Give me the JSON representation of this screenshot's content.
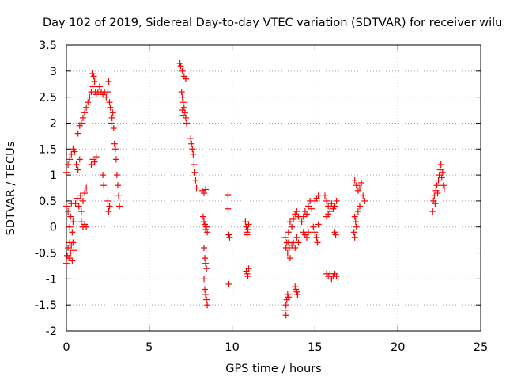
{
  "chart_data": {
    "type": "scatter",
    "title": "Day 102 of 2019, Sidereal Day-to-day VTEC variation (SDTVAR) for receiver wilu",
    "xlabel": "GPS time / hours",
    "ylabel": "SDTVAR / TECUs",
    "xlim": [
      0,
      25
    ],
    "ylim": [
      -2,
      3.5
    ],
    "xticks": [
      "0",
      "5",
      "10",
      "15",
      "20",
      "25"
    ],
    "yticks": [
      "-2",
      "-1.5",
      "-1",
      "-0.5",
      "0",
      "0.5",
      "1",
      "1.5",
      "2",
      "2.5",
      "3",
      "3.5"
    ],
    "grid": true,
    "marker": "plus",
    "color": "#ff0000",
    "series": [
      {
        "name": "SDTVAR",
        "points": [
          [
            0.0,
            -0.7
          ],
          [
            0.05,
            -0.55
          ],
          [
            0.1,
            -0.4
          ],
          [
            0.15,
            -0.6
          ],
          [
            0.2,
            -0.3
          ],
          [
            0.25,
            -0.5
          ],
          [
            0.3,
            -0.35
          ],
          [
            0.35,
            -0.65
          ],
          [
            0.4,
            -0.3
          ],
          [
            0.45,
            -0.45
          ],
          [
            0.0,
            0.4
          ],
          [
            0.1,
            0.3
          ],
          [
            0.2,
            0.0
          ],
          [
            0.25,
            0.2
          ],
          [
            0.3,
            0.45
          ],
          [
            0.35,
            -0.1
          ],
          [
            0.4,
            0.1
          ],
          [
            0.0,
            1.05
          ],
          [
            0.1,
            1.2
          ],
          [
            0.2,
            1.3
          ],
          [
            0.3,
            1.4
          ],
          [
            0.4,
            1.5
          ],
          [
            0.5,
            1.45
          ],
          [
            0.6,
            1.2
          ],
          [
            0.7,
            1.1
          ],
          [
            0.8,
            1.3
          ],
          [
            0.55,
            0.45
          ],
          [
            0.65,
            0.55
          ],
          [
            0.75,
            0.4
          ],
          [
            0.85,
            0.6
          ],
          [
            0.9,
            0.3
          ],
          [
            1.0,
            0.5
          ],
          [
            1.1,
            0.65
          ],
          [
            1.2,
            0.75
          ],
          [
            0.9,
            0.1
          ],
          [
            1.0,
            0.0
          ],
          [
            1.1,
            0.05
          ],
          [
            1.2,
            0.0
          ],
          [
            0.7,
            1.8
          ],
          [
            0.8,
            1.95
          ],
          [
            0.9,
            2.0
          ],
          [
            1.0,
            2.1
          ],
          [
            1.1,
            2.2
          ],
          [
            1.2,
            2.3
          ],
          [
            1.3,
            2.4
          ],
          [
            1.4,
            2.5
          ],
          [
            1.5,
            2.6
          ],
          [
            1.6,
            2.7
          ],
          [
            1.7,
            2.8
          ],
          [
            1.75,
            2.6
          ],
          [
            1.8,
            2.55
          ],
          [
            1.9,
            2.6
          ],
          [
            2.0,
            2.7
          ],
          [
            2.1,
            2.6
          ],
          [
            2.2,
            2.55
          ],
          [
            1.55,
            2.95
          ],
          [
            1.65,
            2.9
          ],
          [
            2.3,
            2.6
          ],
          [
            2.4,
            2.5
          ],
          [
            2.5,
            2.6
          ],
          [
            2.55,
            2.8
          ],
          [
            2.6,
            2.4
          ],
          [
            2.65,
            2.3
          ],
          [
            2.7,
            2.0
          ],
          [
            2.75,
            2.1
          ],
          [
            2.8,
            2.2
          ],
          [
            2.85,
            1.9
          ],
          [
            2.9,
            1.6
          ],
          [
            2.95,
            1.5
          ],
          [
            3.0,
            1.3
          ],
          [
            3.05,
            1.0
          ],
          [
            3.1,
            0.8
          ],
          [
            3.15,
            0.6
          ],
          [
            3.2,
            0.4
          ],
          [
            1.5,
            1.2
          ],
          [
            1.6,
            1.3
          ],
          [
            1.7,
            1.25
          ],
          [
            1.8,
            1.35
          ],
          [
            2.2,
            1.0
          ],
          [
            2.25,
            0.8
          ],
          [
            2.5,
            0.5
          ],
          [
            2.55,
            0.3
          ],
          [
            2.6,
            0.4
          ],
          [
            6.85,
            3.15
          ],
          [
            6.9,
            3.1
          ],
          [
            7.0,
            3.0
          ],
          [
            7.1,
            2.9
          ],
          [
            7.2,
            2.85
          ],
          [
            6.95,
            2.6
          ],
          [
            7.0,
            2.5
          ],
          [
            7.05,
            2.4
          ],
          [
            7.1,
            2.3
          ],
          [
            7.15,
            2.2
          ],
          [
            7.2,
            2.1
          ],
          [
            7.25,
            2.0
          ],
          [
            7.0,
            2.25
          ],
          [
            7.05,
            2.15
          ],
          [
            7.5,
            1.7
          ],
          [
            7.55,
            1.6
          ],
          [
            7.6,
            1.5
          ],
          [
            7.65,
            1.4
          ],
          [
            7.7,
            1.2
          ],
          [
            7.75,
            1.05
          ],
          [
            7.8,
            0.9
          ],
          [
            7.85,
            0.75
          ],
          [
            8.2,
            0.7
          ],
          [
            8.3,
            0.65
          ],
          [
            8.4,
            0.72
          ],
          [
            8.25,
            0.2
          ],
          [
            8.3,
            0.1
          ],
          [
            8.35,
            0.05
          ],
          [
            8.4,
            -0.05
          ],
          [
            8.45,
            0.0
          ],
          [
            8.5,
            -0.1
          ],
          [
            8.3,
            -0.4
          ],
          [
            8.35,
            -0.6
          ],
          [
            8.4,
            -0.7
          ],
          [
            8.45,
            -0.8
          ],
          [
            8.3,
            -1.0
          ],
          [
            8.35,
            -1.2
          ],
          [
            8.4,
            -1.3
          ],
          [
            8.45,
            -1.4
          ],
          [
            8.5,
            -1.5
          ],
          [
            9.75,
            0.62
          ],
          [
            9.75,
            0.35
          ],
          [
            9.8,
            -0.15
          ],
          [
            9.85,
            -0.2
          ],
          [
            9.8,
            -1.1
          ],
          [
            10.8,
            0.1
          ],
          [
            10.85,
            0.0
          ],
          [
            10.9,
            -0.1
          ],
          [
            10.95,
            -0.05
          ],
          [
            11.0,
            0.05
          ],
          [
            10.9,
            -0.15
          ],
          [
            10.85,
            -0.85
          ],
          [
            10.9,
            -0.9
          ],
          [
            10.95,
            -0.95
          ],
          [
            11.0,
            -0.8
          ],
          [
            13.2,
            -0.2
          ],
          [
            13.25,
            -0.4
          ],
          [
            13.3,
            -0.3
          ],
          [
            13.35,
            -0.5
          ],
          [
            13.4,
            -0.3
          ],
          [
            13.45,
            -0.4
          ],
          [
            13.5,
            -0.6
          ],
          [
            13.4,
            -0.1
          ],
          [
            13.5,
            0.1
          ],
          [
            13.6,
            0.0
          ],
          [
            13.7,
            0.15
          ],
          [
            13.8,
            0.25
          ],
          [
            13.9,
            0.3
          ],
          [
            14.0,
            0.2
          ],
          [
            13.6,
            -0.35
          ],
          [
            13.7,
            -0.3
          ],
          [
            13.8,
            -0.4
          ],
          [
            13.9,
            -0.2
          ],
          [
            14.0,
            -0.3
          ],
          [
            13.25,
            -1.5
          ],
          [
            13.3,
            -1.4
          ],
          [
            13.35,
            -1.3
          ],
          [
            13.4,
            -1.35
          ],
          [
            13.2,
            -1.6
          ],
          [
            13.25,
            -1.7
          ],
          [
            13.8,
            -1.15
          ],
          [
            13.85,
            -1.2
          ],
          [
            13.9,
            -1.25
          ],
          [
            13.95,
            -1.3
          ],
          [
            14.2,
            0.1
          ],
          [
            14.3,
            0.2
          ],
          [
            14.4,
            0.3
          ],
          [
            14.5,
            0.25
          ],
          [
            14.6,
            0.4
          ],
          [
            14.7,
            0.5
          ],
          [
            14.8,
            0.35
          ],
          [
            14.3,
            -0.1
          ],
          [
            14.4,
            -0.15
          ],
          [
            14.5,
            -0.2
          ],
          [
            14.6,
            -0.1
          ],
          [
            14.9,
            0.0
          ],
          [
            15.0,
            -0.1
          ],
          [
            15.1,
            -0.2
          ],
          [
            15.15,
            -0.3
          ],
          [
            15.2,
            0.05
          ],
          [
            15.0,
            0.5
          ],
          [
            15.1,
            0.55
          ],
          [
            15.2,
            0.6
          ],
          [
            15.6,
            0.6
          ],
          [
            15.7,
            0.5
          ],
          [
            15.8,
            0.4
          ],
          [
            15.9,
            0.3
          ],
          [
            16.0,
            0.45
          ],
          [
            16.1,
            0.35
          ],
          [
            16.2,
            0.4
          ],
          [
            16.3,
            0.5
          ],
          [
            15.7,
            0.2
          ],
          [
            15.8,
            0.25
          ],
          [
            15.7,
            -0.9
          ],
          [
            15.8,
            -0.95
          ],
          [
            15.9,
            -0.9
          ],
          [
            16.0,
            -1.0
          ],
          [
            16.1,
            -0.95
          ],
          [
            16.2,
            -0.9
          ],
          [
            16.3,
            -0.95
          ],
          [
            16.2,
            -0.1
          ],
          [
            16.25,
            -0.15
          ],
          [
            17.4,
            0.9
          ],
          [
            17.5,
            0.8
          ],
          [
            17.6,
            0.7
          ],
          [
            17.7,
            0.75
          ],
          [
            17.8,
            0.85
          ],
          [
            17.9,
            0.6
          ],
          [
            18.0,
            0.5
          ],
          [
            17.4,
            0.2
          ],
          [
            17.45,
            0.1
          ],
          [
            17.5,
            0.0
          ],
          [
            17.35,
            -0.1
          ],
          [
            17.4,
            -0.2
          ],
          [
            17.6,
            0.3
          ],
          [
            17.7,
            0.4
          ],
          [
            22.1,
            0.3
          ],
          [
            22.15,
            0.5
          ],
          [
            22.2,
            0.6
          ],
          [
            22.25,
            0.45
          ],
          [
            22.3,
            0.7
          ],
          [
            22.35,
            0.8
          ],
          [
            22.4,
            0.65
          ],
          [
            22.45,
            0.9
          ],
          [
            22.5,
            1.0
          ],
          [
            22.55,
            1.1
          ],
          [
            22.6,
            1.2
          ],
          [
            22.65,
            0.95
          ],
          [
            22.7,
            1.05
          ],
          [
            22.75,
            0.8
          ],
          [
            22.8,
            0.75
          ]
        ]
      }
    ]
  }
}
